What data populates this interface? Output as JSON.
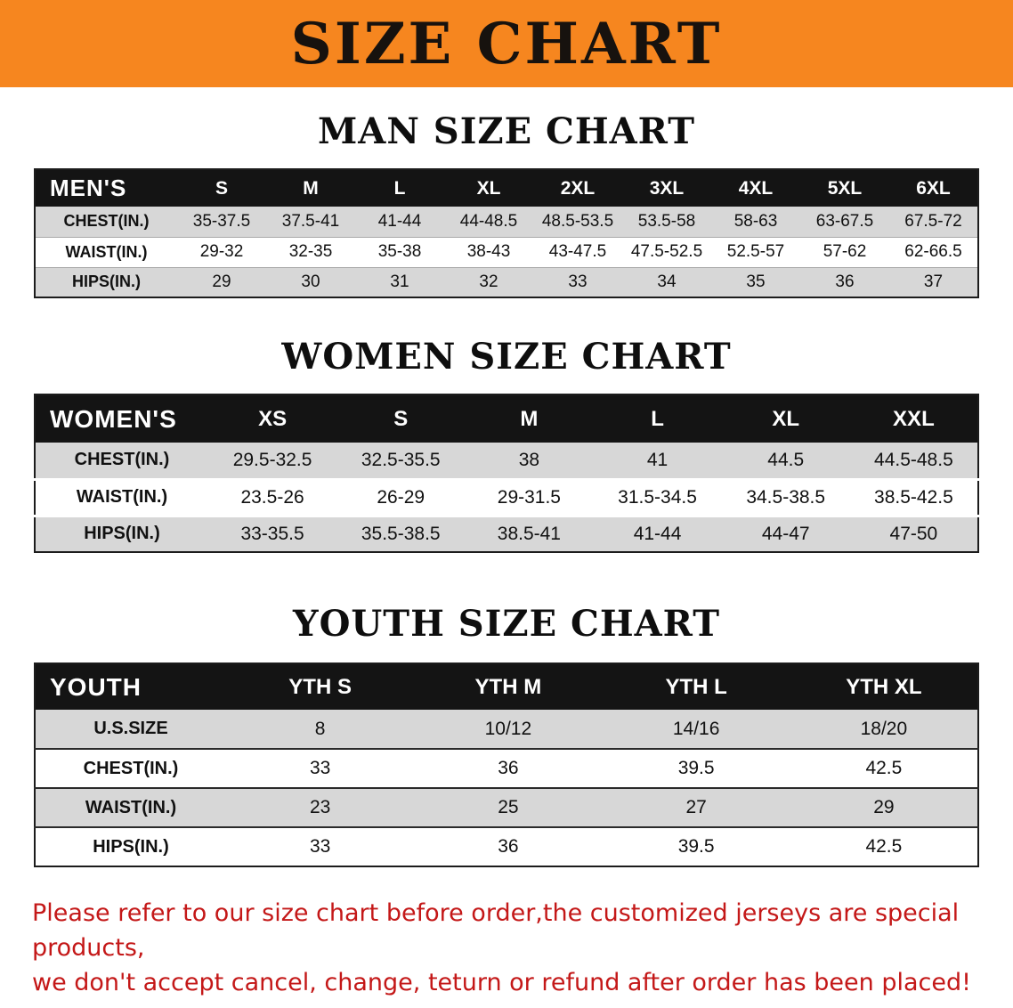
{
  "banner": {
    "title": "SIZE CHART",
    "bg_color": "#f6861f",
    "text_color": "#17120e"
  },
  "men": {
    "heading": "MAN SIZE CHART",
    "head": [
      "MEN'S",
      "S",
      "M",
      "L",
      "XL",
      "2XL",
      "3XL",
      "4XL",
      "5XL",
      "6XL"
    ],
    "chest": [
      "CHEST(IN.)",
      "35-37.5",
      "37.5-41",
      "41-44",
      "44-48.5",
      "48.5-53.5",
      "53.5-58",
      "58-63",
      "63-67.5",
      "67.5-72"
    ],
    "waist": [
      "WAIST(IN.)",
      "29-32",
      "32-35",
      "35-38",
      "38-43",
      "43-47.5",
      "47.5-52.5",
      "52.5-57",
      "57-62",
      "62-66.5"
    ],
    "hips": [
      "HIPS(IN.)",
      "29",
      "30",
      "31",
      "32",
      "33",
      "34",
      "35",
      "36",
      "37"
    ]
  },
  "women": {
    "heading": "WOMEN SIZE CHART",
    "head": [
      "WOMEN'S",
      "XS",
      "S",
      "M",
      "L",
      "XL",
      "XXL"
    ],
    "chest": [
      "CHEST(IN.)",
      "29.5-32.5",
      "32.5-35.5",
      "38",
      "41",
      "44.5",
      "44.5-48.5"
    ],
    "waist": [
      "WAIST(IN.)",
      "23.5-26",
      "26-29",
      "29-31.5",
      "31.5-34.5",
      "34.5-38.5",
      "38.5-42.5"
    ],
    "hips": [
      "HIPS(IN.)",
      "33-35.5",
      "35.5-38.5",
      "38.5-41",
      "41-44",
      "44-47",
      "47-50"
    ]
  },
  "youth": {
    "heading": "YOUTH SIZE CHART",
    "head": [
      "YOUTH",
      "YTH S",
      "YTH M",
      "YTH L",
      "YTH XL"
    ],
    "ussize": [
      "U.S.SIZE",
      "8",
      "10/12",
      "14/16",
      "18/20"
    ],
    "chest": [
      "CHEST(IN.)",
      "33",
      "36",
      "39.5",
      "42.5"
    ],
    "waist": [
      "WAIST(IN.)",
      "23",
      "25",
      "27",
      "29"
    ],
    "hips": [
      "HIPS(IN.)",
      "33",
      "36",
      "39.5",
      "42.5"
    ]
  },
  "disclaimer": {
    "line1": "Please refer to our size chart before order,the customized jerseys are special products,",
    "line2": "we don't accept cancel, change, teturn or refund after order has been placed!",
    "color": "#c41818"
  }
}
